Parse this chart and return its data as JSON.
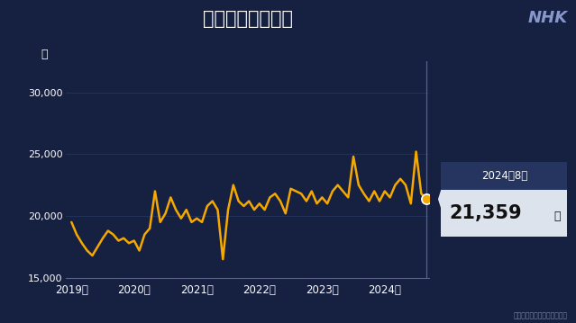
{
  "title": "生活保護申請件数",
  "ylabel": "件",
  "source": "厚生労働省「被保護者調査」",
  "nhk_text": "NHK",
  "bg_color": "#162040",
  "line_color": "#f5a800",
  "vline_color": "#5060a0",
  "grid_color": "#243560",
  "ann_top_bg": "#253560",
  "ann_bot_bg": "#dde3ec",
  "ann_label": "2024年8月",
  "ann_value": "21,359",
  "ann_unit": "件",
  "highlight_value": 21359,
  "ylim_min": 15000,
  "ylim_max": 32500,
  "yticks": [
    15000,
    20000,
    25000,
    30000
  ],
  "ytick_labels": [
    "15,000",
    "20,000",
    "25,000",
    "30,000"
  ],
  "xtick_labels": [
    "2019年",
    "2020年",
    "2021年",
    "2022年",
    "2023年",
    "2024年"
  ],
  "xtick_positions": [
    0,
    12,
    24,
    36,
    48,
    60
  ],
  "values": [
    19500,
    18500,
    17800,
    17200,
    16800,
    17500,
    18200,
    18800,
    18500,
    18000,
    18200,
    17800,
    18000,
    17200,
    18500,
    19000,
    22000,
    19500,
    20200,
    21500,
    20500,
    19800,
    20500,
    19500,
    19800,
    19500,
    20800,
    21200,
    20500,
    16500,
    20500,
    22500,
    21200,
    20800,
    21200,
    20500,
    21000,
    20500,
    21500,
    21800,
    21200,
    20200,
    22200,
    22000,
    21800,
    21200,
    22000,
    21000,
    21500,
    21000,
    22000,
    22500,
    22000,
    21500,
    24800,
    22500,
    21800,
    21200,
    22000,
    21200,
    22000,
    21500,
    22500,
    23000,
    22500,
    21000,
    25200,
    21800,
    21359
  ]
}
